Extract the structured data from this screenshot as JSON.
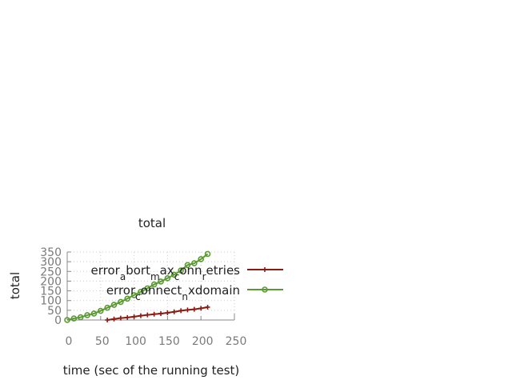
{
  "chart_data": {
    "type": "line",
    "title": "total",
    "xlabel": "time (sec of the running test)",
    "ylabel": "total",
    "xlim": [
      0,
      250
    ],
    "ylim": [
      0,
      350
    ],
    "xticks": [
      0,
      50,
      100,
      150,
      200,
      250
    ],
    "yticks": [
      0,
      50,
      100,
      150,
      200,
      250,
      300,
      350
    ],
    "grid": true,
    "legend_position": "inside-right",
    "series": [
      {
        "name_parts": [
          {
            "t": "error",
            "sub": false
          },
          {
            "t": "a",
            "sub": true
          },
          {
            "t": "bort",
            "sub": false
          },
          {
            "t": "m",
            "sub": true
          },
          {
            "t": "ax",
            "sub": false
          },
          {
            "t": "c",
            "sub": true
          },
          {
            "t": "onn",
            "sub": false
          },
          {
            "t": "r",
            "sub": true
          },
          {
            "t": "etries",
            "sub": false
          }
        ],
        "color": "#8b1a10",
        "marker": "plus",
        "x": [
          60,
          70,
          80,
          90,
          100,
          110,
          120,
          130,
          140,
          150,
          160,
          170,
          180,
          190,
          200,
          210
        ],
        "y": [
          0,
          5,
          10,
          13,
          17,
          22,
          26,
          30,
          33,
          37,
          42,
          48,
          52,
          55,
          60,
          66
        ]
      },
      {
        "name_parts": [
          {
            "t": "error",
            "sub": false
          },
          {
            "t": "c",
            "sub": true
          },
          {
            "t": "onnect",
            "sub": false
          },
          {
            "t": "n",
            "sub": true
          },
          {
            "t": "xdomain",
            "sub": false
          }
        ],
        "color": "#5a9a32",
        "marker": "circle",
        "x": [
          0,
          10,
          20,
          30,
          40,
          50,
          60,
          70,
          80,
          90,
          100,
          110,
          120,
          130,
          140,
          150,
          160,
          170,
          180,
          190,
          200,
          210
        ],
        "y": [
          0,
          8,
          14,
          25,
          33,
          47,
          63,
          78,
          93,
          110,
          128,
          145,
          163,
          183,
          198,
          215,
          233,
          255,
          283,
          292,
          313,
          340
        ]
      }
    ]
  }
}
